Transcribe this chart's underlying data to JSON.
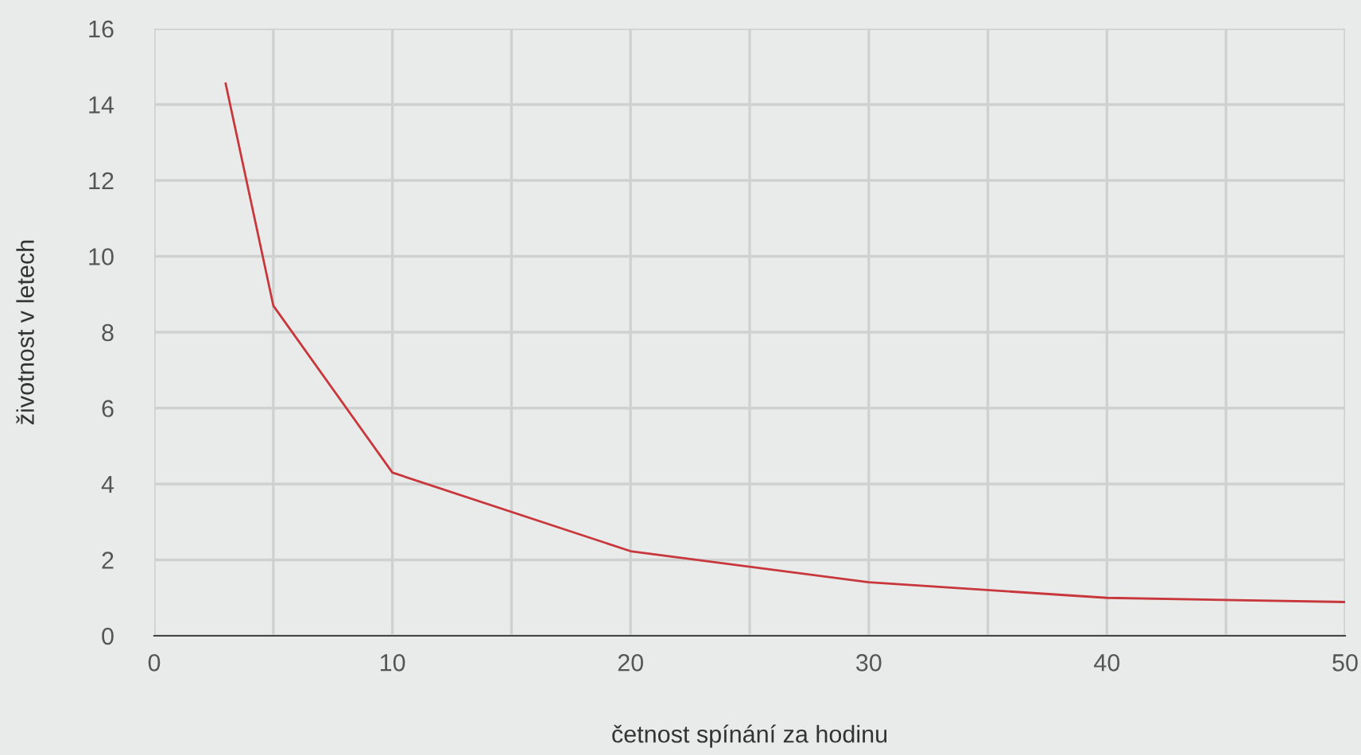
{
  "chart_data": {
    "type": "line",
    "xlabel": "četnost spínání za hodinu",
    "ylabel": "životnost v letech",
    "x": [
      3,
      5,
      10,
      20,
      30,
      40,
      50
    ],
    "series": [
      {
        "color": "#c8373b",
        "values": [
          14.55,
          8.7,
          4.3,
          2.23,
          1.41,
          1.0,
          0.89
        ]
      }
    ],
    "xlim": [
      0,
      50
    ],
    "ylim": [
      0,
      16
    ],
    "xticks": [
      0,
      {
        "value": 5,
        "label": null
      },
      10,
      {
        "value": 15,
        "label": null
      },
      20,
      {
        "value": 25,
        "label": null
      },
      30,
      {
        "value": 35,
        "label": null
      },
      40,
      {
        "value": 45,
        "label": null
      },
      50
    ],
    "yticks": [
      0,
      2,
      4,
      6,
      8,
      10,
      12,
      14,
      16
    ],
    "grid": true
  }
}
